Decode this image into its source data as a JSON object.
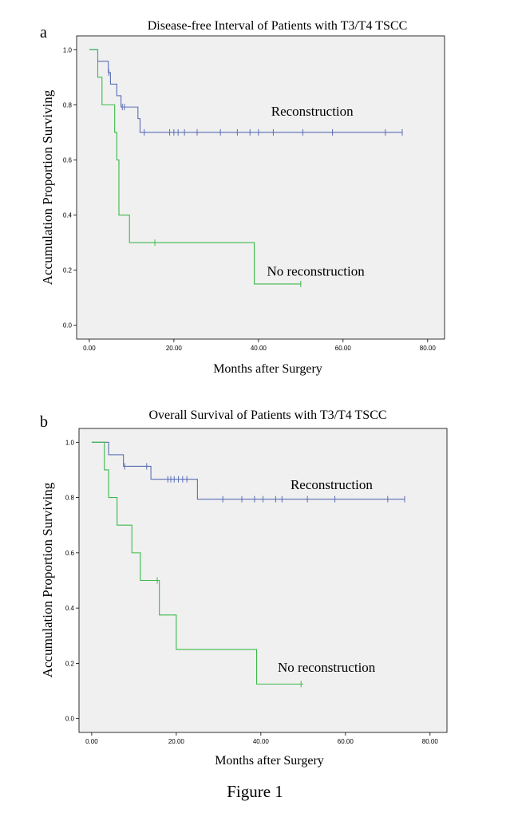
{
  "figure_caption": "Figure 1",
  "chart_data": [
    {
      "panel": "a",
      "type": "line",
      "title": "Disease-free Interval of Patients with T3/T4 TSCC",
      "xlabel": "Months after Surgery",
      "ylabel": "Accumulation Proportion Surviving",
      "xlim": [
        -3,
        84
      ],
      "ylim": [
        -0.05,
        1.05
      ],
      "x_ticks": [
        "0.00",
        "20.00",
        "40.00",
        "60.00",
        "80.00"
      ],
      "y_ticks": [
        "0.0",
        "0.2",
        "0.4",
        "0.6",
        "0.8",
        "1.0"
      ],
      "grid": false,
      "colors": {
        "Reconstruction": "#5a6db5",
        "No reconstruction": "#3cb94a",
        "background": "#f0f0f0"
      },
      "series": [
        {
          "name": "Reconstruction",
          "label_at": [
            43,
            0.76
          ],
          "steps": [
            [
              0,
              1.0
            ],
            [
              2,
              0.958
            ],
            [
              4.5,
              0.917
            ],
            [
              5,
              0.875
            ],
            [
              6.5,
              0.833
            ],
            [
              7.5,
              0.792
            ],
            [
              11.5,
              0.75
            ],
            [
              12,
              0.7
            ],
            [
              74,
              0.7
            ]
          ],
          "censors": [
            [
              4.6,
              0.917
            ],
            [
              7.8,
              0.792
            ],
            [
              8.3,
              0.792
            ],
            [
              13,
              0.7
            ],
            [
              19,
              0.7
            ],
            [
              20,
              0.7
            ],
            [
              21,
              0.7
            ],
            [
              22.5,
              0.7
            ],
            [
              25.5,
              0.7
            ],
            [
              31,
              0.7
            ],
            [
              35,
              0.7
            ],
            [
              38,
              0.7
            ],
            [
              40,
              0.7
            ],
            [
              43.5,
              0.7
            ],
            [
              50.5,
              0.7
            ],
            [
              57.5,
              0.7
            ],
            [
              70,
              0.7
            ],
            [
              74,
              0.7
            ]
          ]
        },
        {
          "name": "No reconstruction",
          "label_at": [
            42,
            0.18
          ],
          "steps": [
            [
              0,
              1.0
            ],
            [
              2,
              0.9
            ],
            [
              3,
              0.8
            ],
            [
              6,
              0.7
            ],
            [
              6.5,
              0.6
            ],
            [
              7,
              0.4
            ],
            [
              9.5,
              0.3
            ],
            [
              39,
              0.15
            ],
            [
              50,
              0.15
            ]
          ],
          "censors": [
            [
              15.5,
              0.3
            ],
            [
              50,
              0.15
            ]
          ]
        }
      ]
    },
    {
      "panel": "b",
      "type": "line",
      "title": "Overall Survival of Patients with T3/T4 TSCC",
      "xlabel": "Months after Surgery",
      "ylabel": "Accumulation Proportion Surviving",
      "xlim": [
        -3,
        84
      ],
      "ylim": [
        -0.05,
        1.05
      ],
      "x_ticks": [
        "0.00",
        "20.00",
        "40.00",
        "60.00",
        "80.00"
      ],
      "y_ticks": [
        "0.0",
        "0.2",
        "0.4",
        "0.6",
        "0.8",
        "1.0"
      ],
      "grid": false,
      "colors": {
        "Reconstruction": "#5a6db5",
        "No reconstruction": "#3cb94a",
        "background": "#f0f0f0"
      },
      "series": [
        {
          "name": "Reconstruction",
          "label_at": [
            47,
            0.83
          ],
          "steps": [
            [
              0,
              1.0
            ],
            [
              4,
              0.955
            ],
            [
              7.5,
              0.913
            ],
            [
              14,
              0.866
            ],
            [
              25,
              0.794
            ],
            [
              74,
              0.794
            ]
          ],
          "censors": [
            [
              7.8,
              0.913
            ],
            [
              13,
              0.913
            ],
            [
              18,
              0.866
            ],
            [
              18.7,
              0.866
            ],
            [
              19.5,
              0.866
            ],
            [
              20.5,
              0.866
            ],
            [
              21.5,
              0.866
            ],
            [
              22.5,
              0.866
            ],
            [
              31,
              0.794
            ],
            [
              35.5,
              0.794
            ],
            [
              38.5,
              0.794
            ],
            [
              40.5,
              0.794
            ],
            [
              43.5,
              0.794
            ],
            [
              45,
              0.794
            ],
            [
              51,
              0.794
            ],
            [
              57.5,
              0.794
            ],
            [
              70,
              0.794
            ],
            [
              74,
              0.794
            ]
          ]
        },
        {
          "name": "No reconstruction",
          "label_at": [
            44,
            0.17
          ],
          "steps": [
            [
              0,
              1.0
            ],
            [
              3,
              0.9
            ],
            [
              4,
              0.8
            ],
            [
              6,
              0.7
            ],
            [
              9.5,
              0.6
            ],
            [
              11.5,
              0.5
            ],
            [
              16,
              0.375
            ],
            [
              20,
              0.25
            ],
            [
              39,
              0.125
            ],
            [
              50,
              0.125
            ]
          ],
          "censors": [
            [
              15.5,
              0.5
            ],
            [
              49.5,
              0.125
            ]
          ]
        }
      ]
    }
  ]
}
